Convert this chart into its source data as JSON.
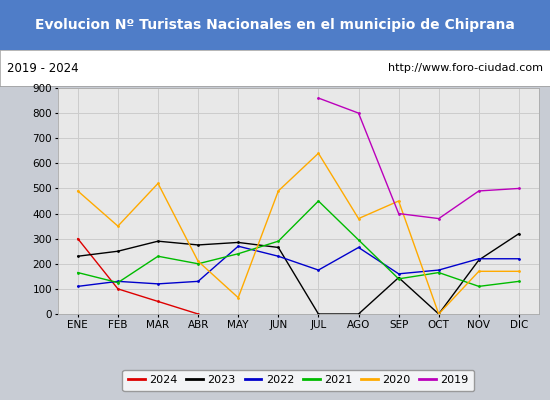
{
  "title": "Evolucion Nº Turistas Nacionales en el municipio de Chiprana",
  "subtitle_left": "2019 - 2024",
  "subtitle_right": "http://www.foro-ciudad.com",
  "title_bg_color": "#4f7dc8",
  "title_text_color": "#ffffff",
  "months": [
    "ENE",
    "FEB",
    "MAR",
    "ABR",
    "MAY",
    "JUN",
    "JUL",
    "AGO",
    "SEP",
    "OCT",
    "NOV",
    "DIC"
  ],
  "ylim": [
    0,
    900
  ],
  "yticks": [
    0,
    100,
    200,
    300,
    400,
    500,
    600,
    700,
    800,
    900
  ],
  "series": {
    "2024": {
      "color": "#dd0000",
      "data": [
        300,
        100,
        50,
        0,
        null,
        null,
        null,
        null,
        null,
        null,
        null,
        null
      ]
    },
    "2023": {
      "color": "#000000",
      "data": [
        230,
        250,
        290,
        275,
        285,
        265,
        0,
        0,
        145,
        0,
        215,
        320
      ]
    },
    "2022": {
      "color": "#0000cc",
      "data": [
        110,
        130,
        120,
        130,
        270,
        230,
        175,
        265,
        160,
        175,
        220,
        220
      ]
    },
    "2021": {
      "color": "#00bb00",
      "data": [
        165,
        125,
        230,
        200,
        240,
        290,
        450,
        295,
        140,
        165,
        110,
        130
      ]
    },
    "2020": {
      "color": "#ffaa00",
      "data": [
        490,
        350,
        520,
        210,
        65,
        490,
        640,
        380,
        450,
        0,
        170,
        170
      ]
    },
    "2019": {
      "color": "#bb00bb",
      "data": [
        null,
        null,
        null,
        null,
        null,
        null,
        860,
        800,
        400,
        380,
        490,
        500
      ]
    }
  },
  "legend_order": [
    "2024",
    "2023",
    "2022",
    "2021",
    "2020",
    "2019"
  ],
  "outer_bg": "#c8ccd4",
  "plot_bg": "#e8e8e8",
  "subtitle_bg": "#ffffff",
  "grid_color": "#d4d4d4"
}
